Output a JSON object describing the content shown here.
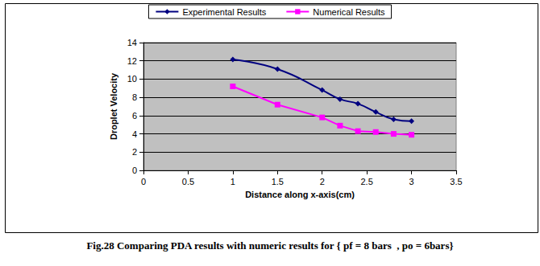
{
  "chart_data": {
    "type": "line",
    "title": "Fig.28 Comparing PDA results with numeric results for { pf = 8 bars  , po = 6bars}",
    "x_label": "Distance along x-axis(cm)",
    "y_label": "Droplet Velocity",
    "x": [
      1,
      1.5,
      2,
      2.2,
      2.4,
      2.6,
      2.8,
      3
    ],
    "series": [
      {
        "name": "Experimental Results",
        "color": "#000080",
        "marker": "diamond",
        "line_style": "smooth",
        "values": [
          12.15,
          11.1,
          8.8,
          7.8,
          7.3,
          6.4,
          5.6,
          5.4
        ]
      },
      {
        "name": "Numerical Results",
        "color": "#ff00ff",
        "marker": "square",
        "line_style": "straight",
        "values": [
          9.2,
          7.2,
          5.8,
          4.9,
          4.3,
          4.2,
          4.0,
          3.9
        ]
      }
    ],
    "xlim": [
      0,
      3.5
    ],
    "xticks": [
      0,
      0.5,
      1,
      1.5,
      2,
      2.5,
      3,
      3.5
    ],
    "ylim": [
      0,
      14
    ],
    "yticks": [
      0,
      2,
      4,
      6,
      8,
      10,
      12,
      14
    ],
    "grid": true,
    "legend": "top"
  }
}
